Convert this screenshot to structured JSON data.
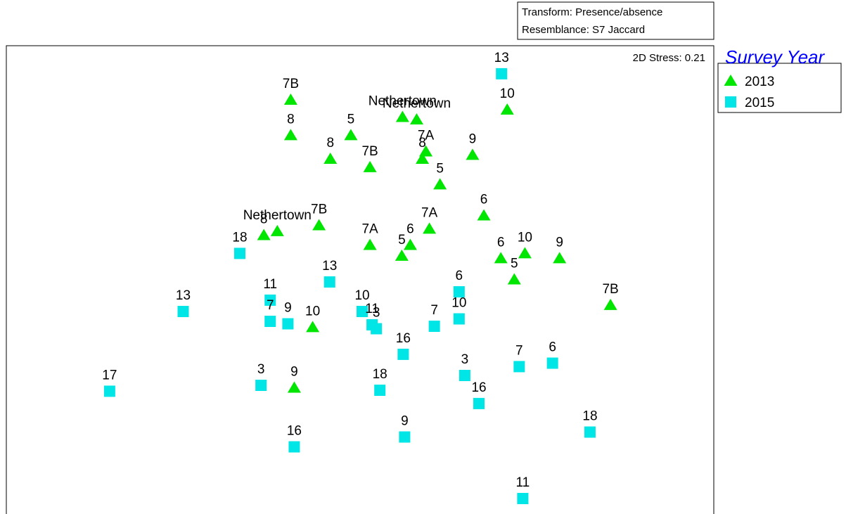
{
  "chart_data": {
    "type": "scatter",
    "title": "",
    "xlabel": "",
    "ylabel": "",
    "xlim": [
      0,
      100
    ],
    "ylim": [
      0,
      100
    ],
    "grid": false,
    "legend_position": "right",
    "transform_label": "Transform: Presence/absence",
    "resemblance_label": "Resemblance: S7 Jaccard",
    "stress_label": "2D Stress: 0.21",
    "legend": {
      "title": "Survey Year",
      "title_color": "#0000ff",
      "entries": [
        {
          "name": "2013",
          "marker": "triangle",
          "color": "#00e600"
        },
        {
          "name": "2015",
          "marker": "square",
          "color": "#00e6e6"
        }
      ]
    },
    "series": [
      {
        "name": "2013",
        "marker": "triangle",
        "color": "#00e600",
        "points": [
          {
            "label": "7B",
            "x": 40.2,
            "y": 89.0
          },
          {
            "label": "8",
            "x": 40.2,
            "y": 81.8
          },
          {
            "label": "8",
            "x": 45.8,
            "y": 77.0
          },
          {
            "label": "5",
            "x": 48.7,
            "y": 81.8
          },
          {
            "label": "7B",
            "x": 51.4,
            "y": 75.3
          },
          {
            "label": "Nethertown",
            "x": 56.0,
            "y": 85.5
          },
          {
            "label": "Nethertown",
            "x": 58.0,
            "y": 85.0
          },
          {
            "label": "7A",
            "x": 59.3,
            "y": 78.5
          },
          {
            "label": "8",
            "x": 58.8,
            "y": 77.0
          },
          {
            "label": "5",
            "x": 61.3,
            "y": 71.8
          },
          {
            "label": "9",
            "x": 65.9,
            "y": 77.8
          },
          {
            "label": "10",
            "x": 70.8,
            "y": 87.0
          },
          {
            "label": "8",
            "x": 36.4,
            "y": 61.5
          },
          {
            "label": "Nethertown",
            "x": 38.3,
            "y": 62.3
          },
          {
            "label": "7B",
            "x": 44.2,
            "y": 63.5
          },
          {
            "label": "7A",
            "x": 51.4,
            "y": 59.5
          },
          {
            "label": "6",
            "x": 57.1,
            "y": 59.5
          },
          {
            "label": "7A",
            "x": 59.8,
            "y": 62.8
          },
          {
            "label": "5",
            "x": 55.9,
            "y": 57.3
          },
          {
            "label": "6",
            "x": 67.5,
            "y": 65.5
          },
          {
            "label": "6",
            "x": 69.9,
            "y": 56.8
          },
          {
            "label": "10",
            "x": 73.3,
            "y": 57.8
          },
          {
            "label": "5",
            "x": 71.8,
            "y": 52.5
          },
          {
            "label": "9",
            "x": 78.2,
            "y": 56.8
          },
          {
            "label": "7B",
            "x": 85.4,
            "y": 47.3
          },
          {
            "label": "10",
            "x": 43.3,
            "y": 42.8
          },
          {
            "label": "9",
            "x": 40.7,
            "y": 30.5
          }
        ]
      },
      {
        "name": "2015",
        "marker": "square",
        "color": "#00e6e6",
        "points": [
          {
            "label": "13",
            "x": 70.0,
            "y": 94.3
          },
          {
            "label": "18",
            "x": 33.0,
            "y": 57.8
          },
          {
            "label": "13",
            "x": 25.0,
            "y": 46.0
          },
          {
            "label": "13",
            "x": 45.7,
            "y": 52.0
          },
          {
            "label": "11",
            "x": 37.3,
            "y": 48.3
          },
          {
            "label": "7",
            "x": 37.3,
            "y": 44.0
          },
          {
            "label": "9",
            "x": 39.8,
            "y": 43.5
          },
          {
            "label": "10",
            "x": 50.3,
            "y": 46.0
          },
          {
            "label": "11",
            "x": 51.7,
            "y": 43.3
          },
          {
            "label": "3",
            "x": 52.3,
            "y": 42.5
          },
          {
            "label": "7",
            "x": 60.5,
            "y": 43.0
          },
          {
            "label": "6",
            "x": 64.0,
            "y": 50.0
          },
          {
            "label": "10",
            "x": 64.0,
            "y": 44.5
          },
          {
            "label": "16",
            "x": 56.1,
            "y": 37.3
          },
          {
            "label": "17",
            "x": 14.6,
            "y": 29.8
          },
          {
            "label": "3",
            "x": 36.0,
            "y": 31.0
          },
          {
            "label": "18",
            "x": 52.8,
            "y": 30.0
          },
          {
            "label": "3",
            "x": 64.8,
            "y": 33.0
          },
          {
            "label": "16",
            "x": 66.8,
            "y": 27.3
          },
          {
            "label": "7",
            "x": 72.5,
            "y": 34.8
          },
          {
            "label": "6",
            "x": 77.2,
            "y": 35.5
          },
          {
            "label": "16",
            "x": 40.7,
            "y": 18.5
          },
          {
            "label": "9",
            "x": 56.3,
            "y": 20.5
          },
          {
            "label": "18",
            "x": 82.5,
            "y": 21.5
          },
          {
            "label": "11",
            "x": 73.0,
            "y": 8.0
          }
        ]
      }
    ]
  }
}
